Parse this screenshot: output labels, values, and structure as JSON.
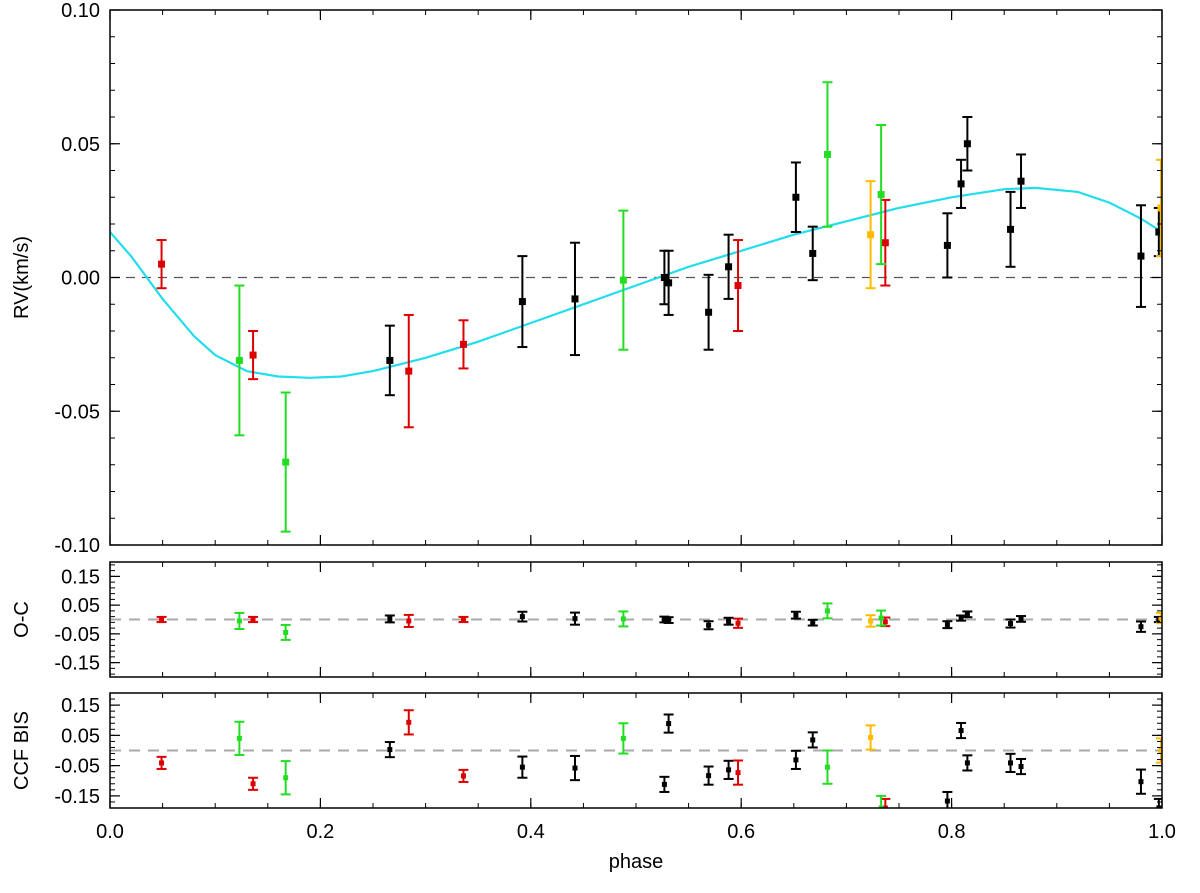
{
  "colors": {
    "black": "#000000",
    "red": "#dd0000",
    "green": "#22dd22",
    "orange": "#ffbb00",
    "model": "#22ddee",
    "zero_line": "#555555",
    "residual_line": "#aaaaaa"
  },
  "chart_data": [
    {
      "type": "scatter",
      "panel": "rv",
      "xlabel": "",
      "ylabel": "RV(km/s)",
      "xlim": [
        0.0,
        1.0
      ],
      "ylim": [
        -0.1,
        0.1
      ],
      "yticks": [
        -0.1,
        -0.05,
        0.0,
        0.05,
        0.1
      ],
      "ytick_labels": [
        "-0.10",
        "-0.05",
        "0.00",
        "0.05",
        "0.10"
      ],
      "xticks": [
        0.0,
        0.2,
        0.4,
        0.6,
        0.8,
        1.0
      ],
      "reference_line": 0.0,
      "model_curve": {
        "color": "#22ddee",
        "x": [
          0.0,
          0.02,
          0.05,
          0.08,
          0.1,
          0.13,
          0.16,
          0.19,
          0.22,
          0.25,
          0.3,
          0.35,
          0.4,
          0.45,
          0.5,
          0.55,
          0.6,
          0.65,
          0.7,
          0.75,
          0.8,
          0.85,
          0.88,
          0.92,
          0.95,
          0.98,
          1.0
        ],
        "y": [
          0.017,
          0.008,
          -0.008,
          -0.022,
          -0.029,
          -0.035,
          -0.037,
          -0.0375,
          -0.037,
          -0.035,
          -0.03,
          -0.024,
          -0.017,
          -0.01,
          -0.003,
          0.004,
          0.01,
          0.016,
          0.021,
          0.026,
          0.03,
          0.033,
          0.0335,
          0.032,
          0.028,
          0.022,
          0.017
        ]
      },
      "series": [
        {
          "color": "#000000",
          "points": [
            {
              "x": 0.266,
              "y": -0.031,
              "err": 0.013
            },
            {
              "x": 0.392,
              "y": -0.009,
              "err": 0.017
            },
            {
              "x": 0.442,
              "y": -0.008,
              "err": 0.021
            },
            {
              "x": 0.527,
              "y": 0.0,
              "err": 0.01
            },
            {
              "x": 0.531,
              "y": -0.002,
              "err": 0.012
            },
            {
              "x": 0.569,
              "y": -0.013,
              "err": 0.014
            },
            {
              "x": 0.588,
              "y": 0.004,
              "err": 0.012
            },
            {
              "x": 0.652,
              "y": 0.03,
              "err": 0.013
            },
            {
              "x": 0.668,
              "y": 0.009,
              "err": 0.01
            },
            {
              "x": 0.796,
              "y": 0.012,
              "err": 0.012
            },
            {
              "x": 0.809,
              "y": 0.035,
              "err": 0.009
            },
            {
              "x": 0.815,
              "y": 0.05,
              "err": 0.01
            },
            {
              "x": 0.856,
              "y": 0.018,
              "err": 0.014
            },
            {
              "x": 0.866,
              "y": 0.036,
              "err": 0.01
            },
            {
              "x": 0.98,
              "y": 0.008,
              "err": 0.019
            },
            {
              "x": 0.997,
              "y": 0.017,
              "err": 0.009
            }
          ]
        },
        {
          "color": "#dd0000",
          "points": [
            {
              "x": 0.049,
              "y": 0.005,
              "err": 0.009
            },
            {
              "x": 0.136,
              "y": -0.029,
              "err": 0.009
            },
            {
              "x": 0.284,
              "y": -0.035,
              "err": 0.021
            },
            {
              "x": 0.336,
              "y": -0.025,
              "err": 0.009
            },
            {
              "x": 0.597,
              "y": -0.003,
              "err": 0.017
            },
            {
              "x": 0.737,
              "y": 0.013,
              "err": 0.016
            }
          ]
        },
        {
          "color": "#22dd22",
          "points": [
            {
              "x": 0.123,
              "y": -0.031,
              "err": 0.028
            },
            {
              "x": 0.167,
              "y": -0.069,
              "err": 0.026
            },
            {
              "x": 0.488,
              "y": -0.001,
              "err": 0.026
            },
            {
              "x": 0.682,
              "y": 0.046,
              "err": 0.027
            },
            {
              "x": 0.733,
              "y": 0.031,
              "err": 0.026
            }
          ]
        },
        {
          "color": "#ffbb00",
          "points": [
            {
              "x": 0.723,
              "y": 0.016,
              "err": 0.02
            },
            {
              "x": 0.999,
              "y": 0.026,
              "err": 0.018
            }
          ]
        }
      ]
    },
    {
      "type": "scatter",
      "panel": "residuals",
      "ylabel": "O-C",
      "xlim": [
        0.0,
        1.0
      ],
      "ylim": [
        -0.2,
        0.2
      ],
      "yticks": [
        -0.15,
        -0.05,
        0.05,
        0.15
      ],
      "ytick_labels": [
        "-0.15",
        "-0.05",
        "0.05",
        "0.15"
      ],
      "xticks": [
        0.0,
        0.2,
        0.4,
        0.6,
        0.8,
        1.0
      ],
      "reference_line": 0.0,
      "series": [
        {
          "color": "#000000",
          "points": [
            {
              "x": 0.266,
              "y": 0.002,
              "err": 0.012
            },
            {
              "x": 0.392,
              "y": 0.01,
              "err": 0.017
            },
            {
              "x": 0.442,
              "y": 0.003,
              "err": 0.021
            },
            {
              "x": 0.527,
              "y": 0.0,
              "err": 0.01
            },
            {
              "x": 0.531,
              "y": -0.002,
              "err": 0.01
            },
            {
              "x": 0.569,
              "y": -0.02,
              "err": 0.014
            },
            {
              "x": 0.588,
              "y": -0.006,
              "err": 0.012
            },
            {
              "x": 0.652,
              "y": 0.015,
              "err": 0.012
            },
            {
              "x": 0.668,
              "y": -0.011,
              "err": 0.01
            },
            {
              "x": 0.796,
              "y": -0.018,
              "err": 0.012
            },
            {
              "x": 0.809,
              "y": 0.005,
              "err": 0.009
            },
            {
              "x": 0.815,
              "y": 0.018,
              "err": 0.01
            },
            {
              "x": 0.856,
              "y": -0.014,
              "err": 0.014
            },
            {
              "x": 0.866,
              "y": 0.002,
              "err": 0.01
            },
            {
              "x": 0.98,
              "y": -0.025,
              "err": 0.018
            },
            {
              "x": 0.997,
              "y": 0.0,
              "err": 0.009
            }
          ]
        },
        {
          "color": "#dd0000",
          "points": [
            {
              "x": 0.049,
              "y": 0.0,
              "err": 0.009
            },
            {
              "x": 0.136,
              "y": 0.0,
              "err": 0.009
            },
            {
              "x": 0.284,
              "y": -0.005,
              "err": 0.021
            },
            {
              "x": 0.336,
              "y": 0.0,
              "err": 0.009
            },
            {
              "x": 0.597,
              "y": -0.013,
              "err": 0.016
            },
            {
              "x": 0.737,
              "y": -0.008,
              "err": 0.015
            }
          ]
        },
        {
          "color": "#22dd22",
          "points": [
            {
              "x": 0.123,
              "y": -0.005,
              "err": 0.028
            },
            {
              "x": 0.167,
              "y": -0.045,
              "err": 0.026
            },
            {
              "x": 0.488,
              "y": 0.002,
              "err": 0.026
            },
            {
              "x": 0.682,
              "y": 0.03,
              "err": 0.026
            },
            {
              "x": 0.733,
              "y": 0.005,
              "err": 0.026
            }
          ]
        },
        {
          "color": "#ffbb00",
          "points": [
            {
              "x": 0.723,
              "y": -0.005,
              "err": 0.02
            },
            {
              "x": 0.999,
              "y": 0.005,
              "err": 0.018
            }
          ]
        }
      ]
    },
    {
      "type": "scatter",
      "panel": "bisector",
      "ylabel": "CCF BIS",
      "xlabel": "phase",
      "xlim": [
        0.0,
        1.0
      ],
      "ylim": [
        -0.19,
        0.19
      ],
      "yticks": [
        -0.15,
        -0.05,
        0.05,
        0.15
      ],
      "ytick_labels": [
        "-0.15",
        "-0.05",
        "0.05",
        "0.15"
      ],
      "xticks": [
        0.0,
        0.2,
        0.4,
        0.6,
        0.8,
        1.0
      ],
      "xtick_labels": [
        "0.0",
        "0.2",
        "0.4",
        "0.6",
        "0.8",
        "1.0"
      ],
      "reference_line": 0.0,
      "series": [
        {
          "color": "#000000",
          "points": [
            {
              "x": 0.266,
              "y": 0.003,
              "err": 0.025
            },
            {
              "x": 0.392,
              "y": -0.055,
              "err": 0.035
            },
            {
              "x": 0.442,
              "y": -0.058,
              "err": 0.04
            },
            {
              "x": 0.527,
              "y": -0.112,
              "err": 0.025
            },
            {
              "x": 0.531,
              "y": 0.089,
              "err": 0.03
            },
            {
              "x": 0.569,
              "y": -0.083,
              "err": 0.03
            },
            {
              "x": 0.588,
              "y": -0.064,
              "err": 0.03
            },
            {
              "x": 0.652,
              "y": -0.031,
              "err": 0.03
            },
            {
              "x": 0.668,
              "y": 0.035,
              "err": 0.025
            },
            {
              "x": 0.796,
              "y": -0.167,
              "err": 0.03
            },
            {
              "x": 0.809,
              "y": 0.066,
              "err": 0.025
            },
            {
              "x": 0.815,
              "y": -0.041,
              "err": 0.025
            },
            {
              "x": 0.856,
              "y": -0.041,
              "err": 0.03
            },
            {
              "x": 0.866,
              "y": -0.053,
              "err": 0.025
            },
            {
              "x": 0.98,
              "y": -0.103,
              "err": 0.04
            },
            {
              "x": 0.997,
              "y": -0.19,
              "err": 0.03
            }
          ]
        },
        {
          "color": "#dd0000",
          "points": [
            {
              "x": 0.049,
              "y": -0.041,
              "err": 0.02
            },
            {
              "x": 0.136,
              "y": -0.11,
              "err": 0.02
            },
            {
              "x": 0.284,
              "y": 0.093,
              "err": 0.04
            },
            {
              "x": 0.336,
              "y": -0.084,
              "err": 0.02
            },
            {
              "x": 0.597,
              "y": -0.073,
              "err": 0.04
            },
            {
              "x": 0.737,
              "y": -0.19,
              "err": 0.03
            }
          ]
        },
        {
          "color": "#22dd22",
          "points": [
            {
              "x": 0.123,
              "y": 0.04,
              "err": 0.055
            },
            {
              "x": 0.167,
              "y": -0.09,
              "err": 0.055
            },
            {
              "x": 0.488,
              "y": 0.04,
              "err": 0.05
            },
            {
              "x": 0.682,
              "y": -0.055,
              "err": 0.055
            },
            {
              "x": 0.733,
              "y": -0.19,
              "err": 0.04
            }
          ]
        },
        {
          "color": "#ffbb00",
          "points": [
            {
              "x": 0.723,
              "y": 0.043,
              "err": 0.04
            },
            {
              "x": 0.999,
              "y": 0.0,
              "err": 0.04
            }
          ]
        }
      ]
    }
  ]
}
